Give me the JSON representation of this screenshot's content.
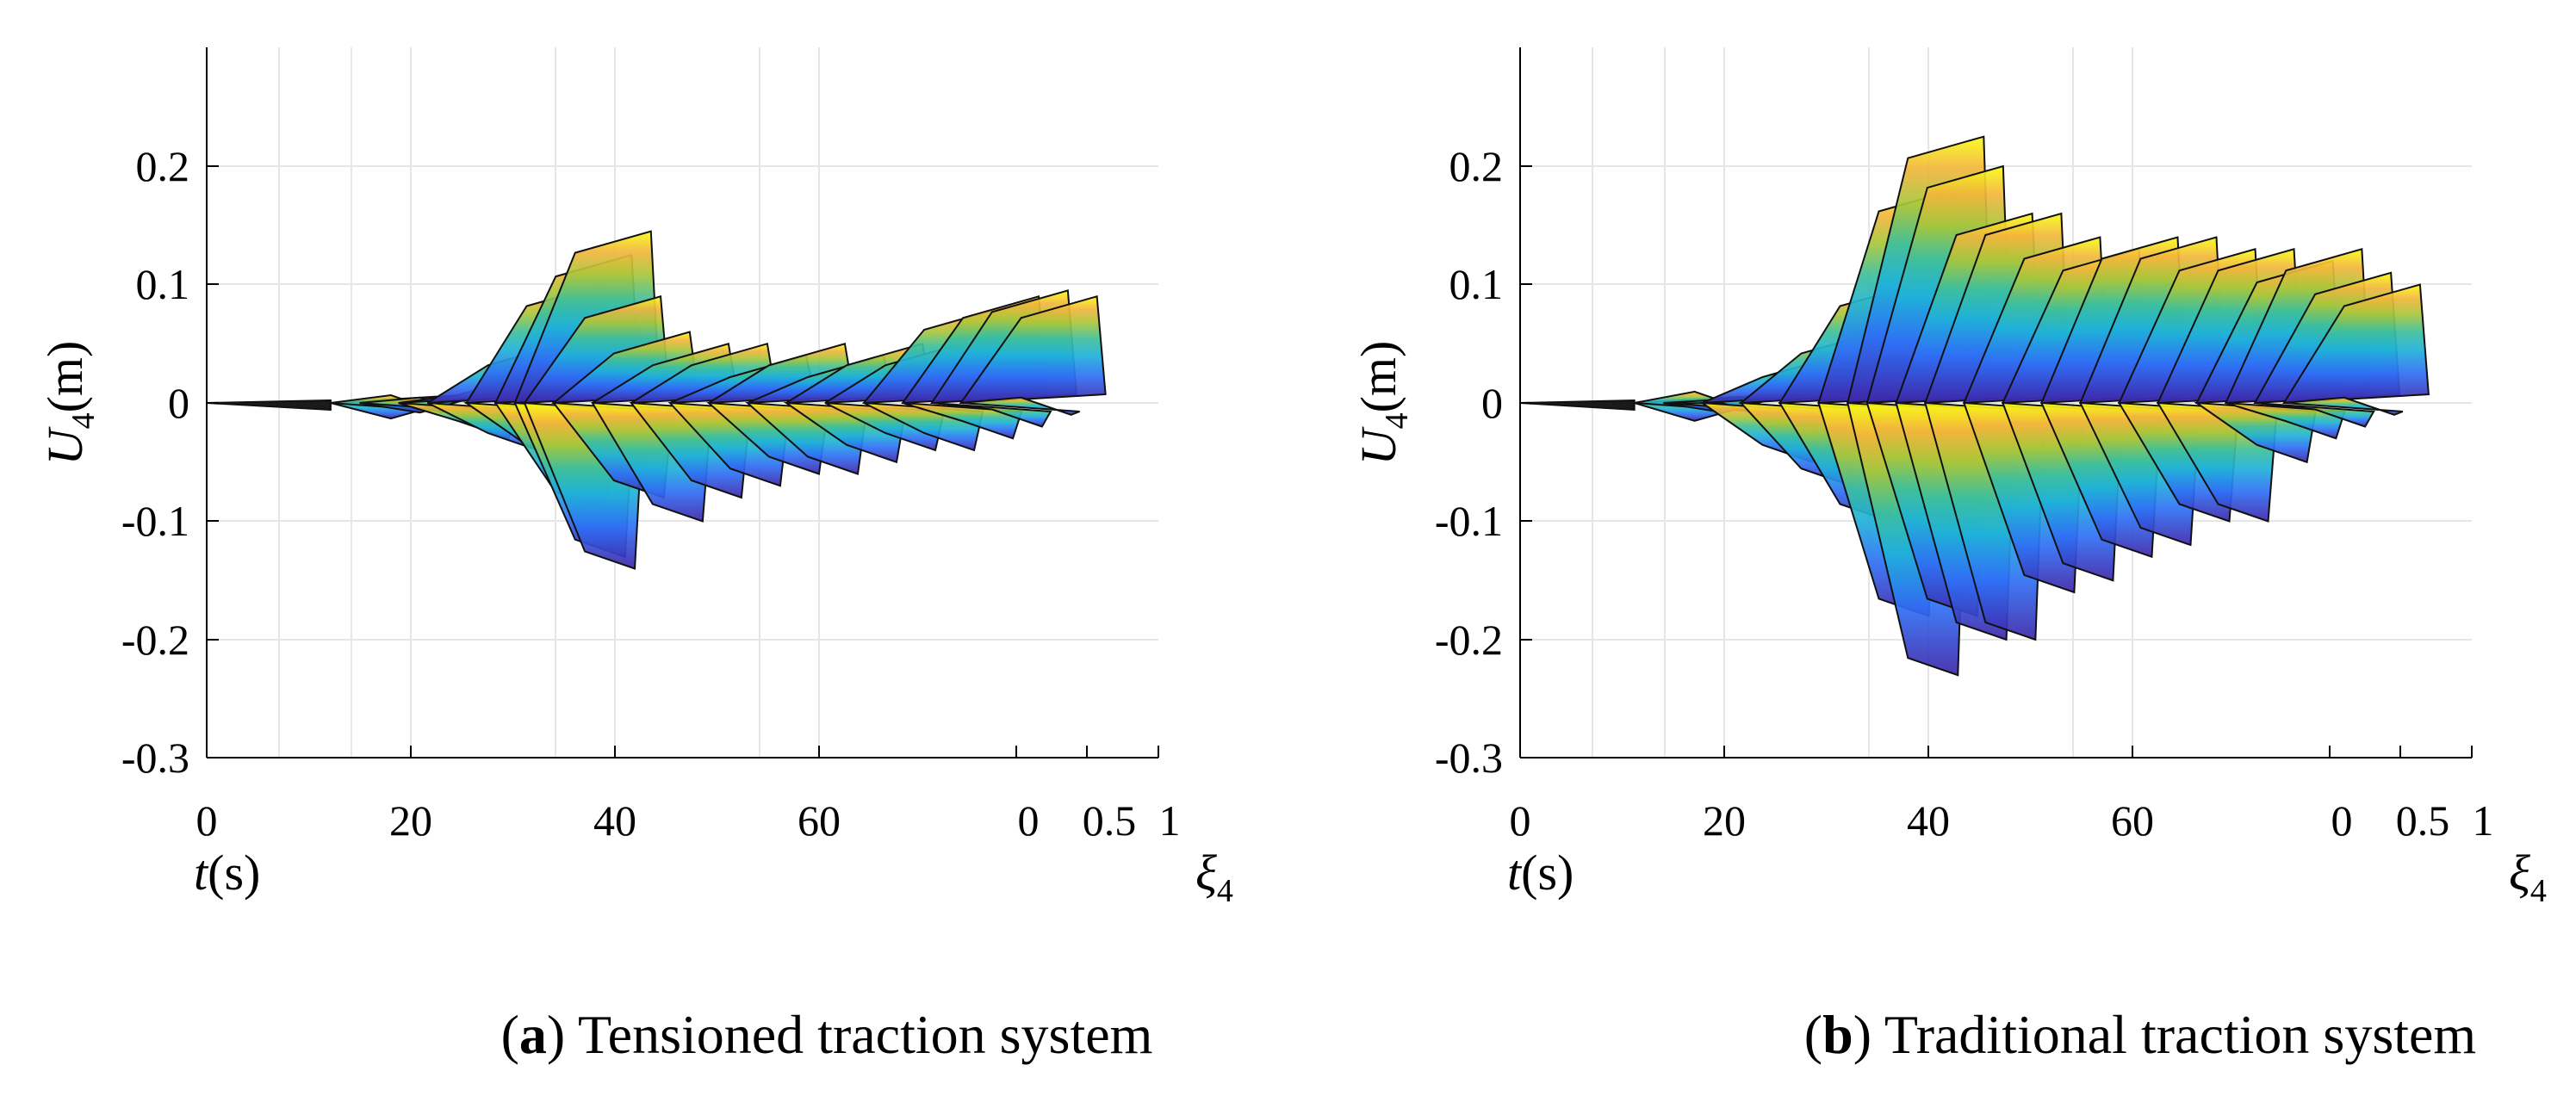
{
  "chart_data": [
    {
      "type": "surface",
      "panel": "a",
      "caption_letter": "a",
      "caption_text": ") Tensioned traction system",
      "ylabel": {
        "var": "U",
        "sub": "4",
        "unit": "(m)"
      },
      "tlabel": {
        "var": "t",
        "unit": "(s)"
      },
      "xilabel": {
        "var": "ξ",
        "sub": "4"
      },
      "ylim": [
        -0.3,
        0.2
      ],
      "y_ticks": [
        "0.2",
        "0.1",
        "0",
        "-0.1",
        "-0.2",
        "-0.3"
      ],
      "t_ticks": [
        "0",
        "20",
        "40",
        "60"
      ],
      "xi_ticks": [
        "0",
        "0.5",
        "1"
      ],
      "grid": true,
      "colormap": "parula",
      "ridges": [
        {
          "t": 19,
          "upper": 0.005,
          "lower": -0.008
        },
        {
          "t": 22,
          "upper": 0.01,
          "lower": -0.01
        },
        {
          "t": 26,
          "upper": 0.025,
          "lower": -0.03
        },
        {
          "t": 29,
          "upper": 0.05,
          "lower": -0.04
        },
        {
          "t": 33,
          "upper": 0.1,
          "lower": -0.05
        },
        {
          "t": 36,
          "upper": 0.125,
          "lower": -0.09
        },
        {
          "t": 38,
          "upper": 0.145,
          "lower": -0.13
        },
        {
          "t": 39,
          "upper": 0.09,
          "lower": -0.14
        },
        {
          "t": 42,
          "upper": 0.06,
          "lower": -0.08
        },
        {
          "t": 46,
          "upper": 0.05,
          "lower": -0.1
        },
        {
          "t": 50,
          "upper": 0.05,
          "lower": -0.08
        },
        {
          "t": 54,
          "upper": 0.04,
          "lower": -0.07
        },
        {
          "t": 58,
          "upper": 0.05,
          "lower": -0.06
        },
        {
          "t": 62,
          "upper": 0.04,
          "lower": -0.06
        },
        {
          "t": 66,
          "upper": 0.05,
          "lower": -0.05
        },
        {
          "t": 70,
          "upper": 0.05,
          "lower": -0.04
        },
        {
          "t": 74,
          "upper": 0.08,
          "lower": -0.04
        },
        {
          "t": 78,
          "upper": 0.09,
          "lower": -0.03
        },
        {
          "t": 81,
          "upper": 0.095,
          "lower": -0.02
        },
        {
          "t": 84,
          "upper": 0.09,
          "lower": -0.01
        }
      ]
    },
    {
      "type": "surface",
      "panel": "b",
      "caption_letter": "b",
      "caption_text": ") Traditional traction system",
      "ylabel": {
        "var": "U",
        "sub": "4",
        "unit": "(m)"
      },
      "tlabel": {
        "var": "t",
        "unit": "(s)"
      },
      "xilabel": {
        "var": "ξ",
        "sub": "4"
      },
      "ylim": [
        -0.3,
        0.2
      ],
      "y_ticks": [
        "0.2",
        "0.1",
        "0",
        "-0.1",
        "-0.2",
        "-0.3"
      ],
      "t_ticks": [
        "0",
        "20",
        "40",
        "60"
      ],
      "xi_ticks": [
        "0",
        "0.5",
        "1"
      ],
      "grid": true,
      "colormap": "parula",
      "ridges": [
        {
          "t": 18,
          "upper": 0.003,
          "lower": -0.005
        },
        {
          "t": 21,
          "upper": 0.01,
          "lower": -0.015
        },
        {
          "t": 25,
          "upper": 0.04,
          "lower": -0.05
        },
        {
          "t": 29,
          "upper": 0.06,
          "lower": -0.07
        },
        {
          "t": 33,
          "upper": 0.1,
          "lower": -0.1
        },
        {
          "t": 37,
          "upper": 0.18,
          "lower": -0.18
        },
        {
          "t": 40,
          "upper": 0.225,
          "lower": -0.23
        },
        {
          "t": 42,
          "upper": 0.2,
          "lower": -0.18
        },
        {
          "t": 45,
          "upper": 0.16,
          "lower": -0.2
        },
        {
          "t": 48,
          "upper": 0.16,
          "lower": -0.2
        },
        {
          "t": 52,
          "upper": 0.14,
          "lower": -0.16
        },
        {
          "t": 56,
          "upper": 0.13,
          "lower": -0.15
        },
        {
          "t": 60,
          "upper": 0.14,
          "lower": -0.13
        },
        {
          "t": 64,
          "upper": 0.14,
          "lower": -0.12
        },
        {
          "t": 68,
          "upper": 0.13,
          "lower": -0.1
        },
        {
          "t": 72,
          "upper": 0.13,
          "lower": -0.1
        },
        {
          "t": 76,
          "upper": 0.12,
          "lower": -0.05
        },
        {
          "t": 79,
          "upper": 0.13,
          "lower": -0.03
        },
        {
          "t": 82,
          "upper": 0.11,
          "lower": -0.02
        },
        {
          "t": 85,
          "upper": 0.1,
          "lower": -0.01
        }
      ]
    }
  ]
}
